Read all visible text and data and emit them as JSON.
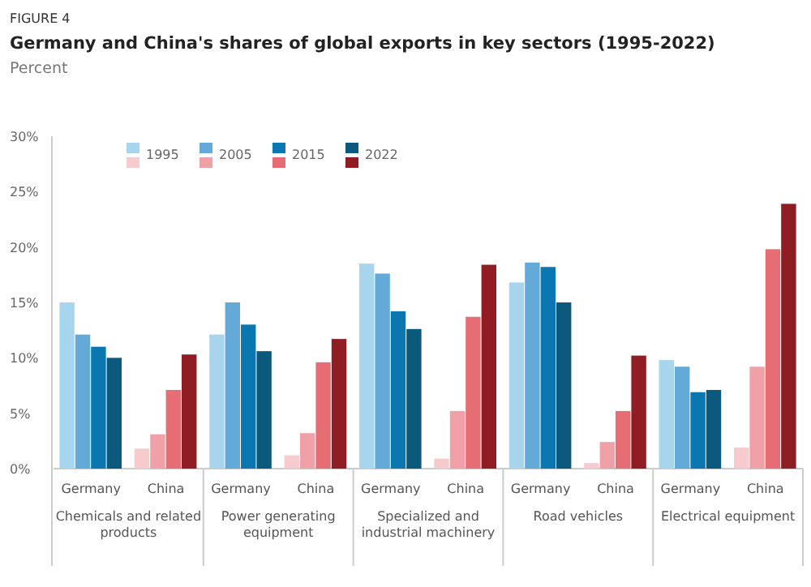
{
  "chart_data": {
    "type": "bar",
    "title": "Germany and China's shares of global exports in key sectors (1995-2022)",
    "ylabel": "Percent",
    "annotations": [
      "FIGURE 4",
      "Chemicals and related products",
      "Power generating equipment",
      "Specialized and industrial machinery",
      "Road vehicles",
      "Electrical equipment"
    ],
    "categories": [
      "Germany",
      "China",
      "Germany",
      "China",
      "Germany",
      "China",
      "Germany",
      "China",
      "Germany",
      "China"
    ],
    "series": [
      {
        "name": "1995",
        "colors": [
          "#a8d5ee",
          "#f5cbce",
          "#a8d5ee",
          "#f5cbce",
          "#a8d5ee",
          "#f5cbce",
          "#a8d5ee",
          "#f5cbce",
          "#a8d5ee",
          "#f5cbce"
        ],
        "values": [
          15.0,
          1.8,
          12.1,
          1.2,
          18.5,
          0.9,
          16.8,
          0.5,
          9.8,
          1.9
        ]
      },
      {
        "name": "2005",
        "colors": [
          "#63aad8",
          "#efa1a7",
          "#63aad8",
          "#efa1a7",
          "#63aad8",
          "#efa1a7",
          "#63aad8",
          "#efa1a7",
          "#63aad8",
          "#efa1a7"
        ],
        "values": [
          12.1,
          3.1,
          15.0,
          3.2,
          17.6,
          5.2,
          18.6,
          2.4,
          9.2,
          9.2
        ]
      },
      {
        "name": "2015",
        "colors": [
          "#0a77b1",
          "#e56d73",
          "#0a77b1",
          "#e56d73",
          "#0a77b1",
          "#e56d73",
          "#0a77b1",
          "#e56d73",
          "#0a77b1",
          "#e56d73"
        ],
        "values": [
          11.0,
          7.1,
          13.0,
          9.6,
          14.2,
          13.7,
          18.2,
          5.2,
          6.9,
          19.8
        ]
      },
      {
        "name": "2022",
        "colors": [
          "#0b5a7d",
          "#8f1d23",
          "#0b5a7d",
          "#8f1d23",
          "#0b5a7d",
          "#8f1d23",
          "#0b5a7d",
          "#8f1d23",
          "#0b5a7d",
          "#8f1d23"
        ],
        "values": [
          10.0,
          10.3,
          10.6,
          11.7,
          12.6,
          18.4,
          15.0,
          10.2,
          7.1,
          23.9
        ]
      }
    ],
    "ylim": [
      0,
      30
    ],
    "yticks": [
      {
        "value": 0,
        "label": "0%"
      },
      {
        "value": 5,
        "label": "5%"
      },
      {
        "value": 10,
        "label": "10%"
      },
      {
        "value": 15,
        "label": "15%"
      },
      {
        "value": 20,
        "label": "20%"
      },
      {
        "value": 25,
        "label": "25%"
      },
      {
        "value": 30,
        "label": "30%"
      }
    ],
    "legend": "top"
  }
}
